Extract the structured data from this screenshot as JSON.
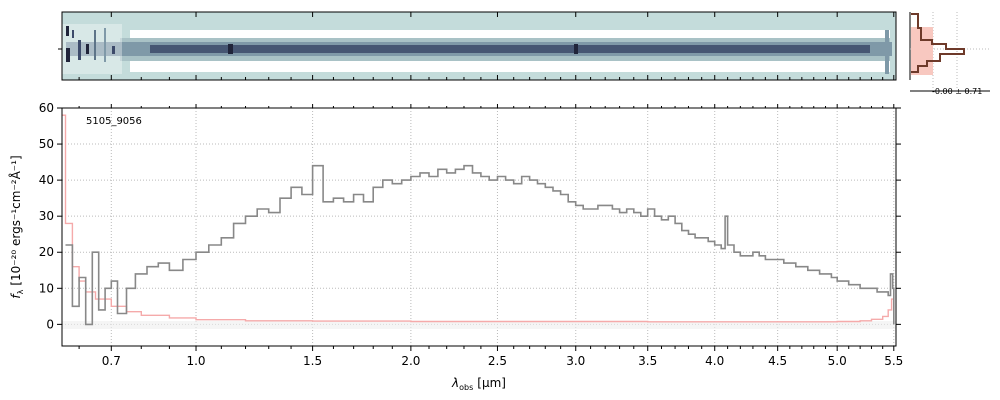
{
  "chart_data": [
    {
      "panel": "2d-spectrum",
      "type": "heatmap",
      "description_rows": "spectral trace: strong central band with fainter bands above and below",
      "xlim": [
        0.55,
        5.52
      ],
      "colors": {
        "background": "#c4dcdb",
        "trace_dark": "#3c4a6a",
        "trace_mid": "#7f99a8",
        "blank": "#ffffff"
      }
    },
    {
      "panel": "profile",
      "type": "line",
      "annotation": "-0.00 ± 0.71",
      "colors": {
        "fill": "#f8c8c0",
        "line": "#6e3a2a"
      }
    },
    {
      "panel": "1d-spectrum",
      "type": "line",
      "label": "5105_9056",
      "xlabel": "λ",
      "xlabel_sub": "obs",
      "xlabel_unit": "[μm]",
      "ylabel_main": "f",
      "ylabel_sub": "λ",
      "ylabel_unit": "[10⁻²⁰ ergs⁻¹cm⁻²Å⁻¹]",
      "xscale": "sqrt",
      "xlim": [
        0.55,
        5.52
      ],
      "ylim": [
        -6,
        60
      ],
      "x_ticks": [
        0.7,
        1.0,
        1.5,
        2.0,
        2.5,
        3.0,
        3.5,
        4.0,
        4.5,
        5.0,
        5.5
      ],
      "x_tick_labels": [
        "0.7",
        "1.0",
        "1.5",
        "2.0",
        "2.5",
        "3.0",
        "3.5",
        "4.0",
        "4.5",
        "5.0",
        "5.5"
      ],
      "y_ticks": [
        0,
        10,
        20,
        30,
        40,
        50,
        60
      ],
      "y_tick_labels": [
        "0",
        "10",
        "20",
        "30",
        "40",
        "50",
        "60"
      ],
      "grid": true,
      "series": [
        {
          "role": "flux",
          "color": "#888888",
          "x": [
            0.56,
            0.58,
            0.6,
            0.62,
            0.64,
            0.66,
            0.68,
            0.7,
            0.72,
            0.75,
            0.78,
            0.82,
            0.86,
            0.9,
            0.95,
            1.0,
            1.05,
            1.1,
            1.15,
            1.2,
            1.25,
            1.3,
            1.35,
            1.4,
            1.45,
            1.5,
            1.55,
            1.6,
            1.65,
            1.7,
            1.75,
            1.8,
            1.85,
            1.9,
            1.95,
            2.0,
            2.05,
            2.1,
            2.15,
            2.2,
            2.25,
            2.3,
            2.35,
            2.4,
            2.45,
            2.5,
            2.55,
            2.6,
            2.65,
            2.7,
            2.75,
            2.8,
            2.85,
            2.9,
            2.95,
            3.0,
            3.05,
            3.1,
            3.15,
            3.2,
            3.25,
            3.3,
            3.35,
            3.4,
            3.45,
            3.5,
            3.55,
            3.6,
            3.65,
            3.7,
            3.75,
            3.8,
            3.85,
            3.9,
            3.95,
            4.0,
            4.05,
            4.08,
            4.1,
            4.15,
            4.2,
            4.25,
            4.3,
            4.35,
            4.4,
            4.45,
            4.5,
            4.55,
            4.6,
            4.65,
            4.7,
            4.75,
            4.8,
            4.85,
            4.9,
            4.95,
            5.0,
            5.05,
            5.1,
            5.15,
            5.2,
            5.25,
            5.3,
            5.35,
            5.4,
            5.45,
            5.47,
            5.49,
            5.5
          ],
          "y": [
            22,
            5,
            13,
            0,
            20,
            4,
            10,
            12,
            3,
            10,
            14,
            16,
            17,
            15,
            18,
            20,
            22,
            24,
            28,
            30,
            32,
            31,
            35,
            38,
            36,
            44,
            34,
            35,
            34,
            36,
            34,
            38,
            40,
            39,
            40,
            41,
            42,
            41,
            43,
            42,
            43,
            44,
            42,
            41,
            40,
            41,
            40,
            39,
            41,
            40,
            39,
            38,
            37,
            36,
            34,
            33,
            32,
            32,
            33,
            33,
            32,
            31,
            32,
            31,
            30,
            32,
            30,
            29,
            30,
            28,
            26,
            25,
            24,
            24,
            23,
            22,
            21,
            30,
            22,
            20,
            19,
            19,
            20,
            19,
            18,
            18,
            18,
            17,
            17,
            16,
            16,
            15,
            15,
            14,
            14,
            13,
            12,
            12,
            11,
            11,
            10,
            10,
            10,
            9,
            9,
            8,
            14,
            10,
            0
          ]
        },
        {
          "role": "error",
          "color": "#f5aaaa",
          "x": [
            0.55,
            0.56,
            0.58,
            0.6,
            0.62,
            0.65,
            0.7,
            0.75,
            0.8,
            0.9,
            1.0,
            1.2,
            1.5,
            2.0,
            2.5,
            3.0,
            3.5,
            4.0,
            4.5,
            5.0,
            5.2,
            5.3,
            5.4,
            5.45,
            5.48,
            5.5
          ],
          "y": [
            58,
            28,
            16,
            12,
            9,
            7,
            5,
            3.5,
            2.5,
            1.8,
            1.3,
            1.0,
            0.9,
            0.8,
            0.8,
            0.8,
            0.7,
            0.7,
            0.7,
            0.8,
            1.0,
            1.4,
            2.2,
            4,
            7,
            10
          ]
        }
      ]
    }
  ]
}
